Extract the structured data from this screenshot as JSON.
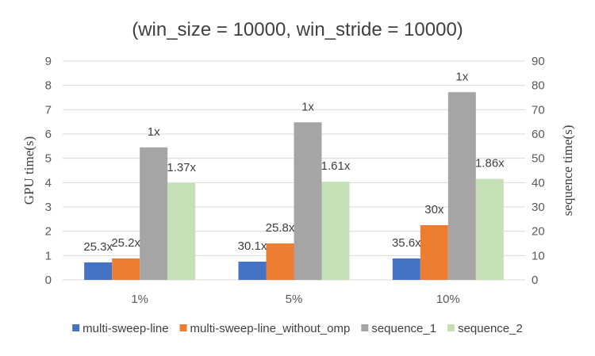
{
  "chart_data": {
    "type": "bar",
    "title": "(win_size = 10000, win_stride = 10000)",
    "categories": [
      "1%",
      "5%",
      "10%"
    ],
    "ylabel": "GPU time(s)",
    "y2label": "sequence time(s)",
    "ylim": [
      0,
      9
    ],
    "y2lim": [
      0,
      90
    ],
    "yticks": [
      "0",
      "1",
      "2",
      "3",
      "4",
      "5",
      "6",
      "7",
      "8",
      "9"
    ],
    "y2ticks": [
      "0",
      "10",
      "20",
      "30",
      "40",
      "50",
      "60",
      "70",
      "80",
      "90"
    ],
    "grid": true,
    "legend_position": "bottom",
    "series": [
      {
        "name": "multi-sweep-line",
        "axis": "left",
        "color": "#4472c4",
        "values": [
          0.72,
          0.75,
          0.88
        ],
        "labels": [
          "25.3x",
          "30.1x",
          "35.6x"
        ]
      },
      {
        "name": "multi-sweep-line_without_omp",
        "axis": "left",
        "color": "#ed7d31",
        "values": [
          0.88,
          1.5,
          2.25
        ],
        "labels": [
          "25.2x",
          "25.8x",
          "30x"
        ]
      },
      {
        "name": "sequence_1",
        "axis": "right",
        "color": "#a5a5a5",
        "values": [
          54.5,
          64.8,
          77.2
        ],
        "labels": [
          "1x",
          "1x",
          "1x"
        ]
      },
      {
        "name": "sequence_2",
        "axis": "right",
        "color": "#c5e0b4",
        "values": [
          39.8,
          40.4,
          41.5
        ],
        "labels": [
          "1.37x",
          "1.61x",
          "1.86x"
        ]
      }
    ]
  }
}
